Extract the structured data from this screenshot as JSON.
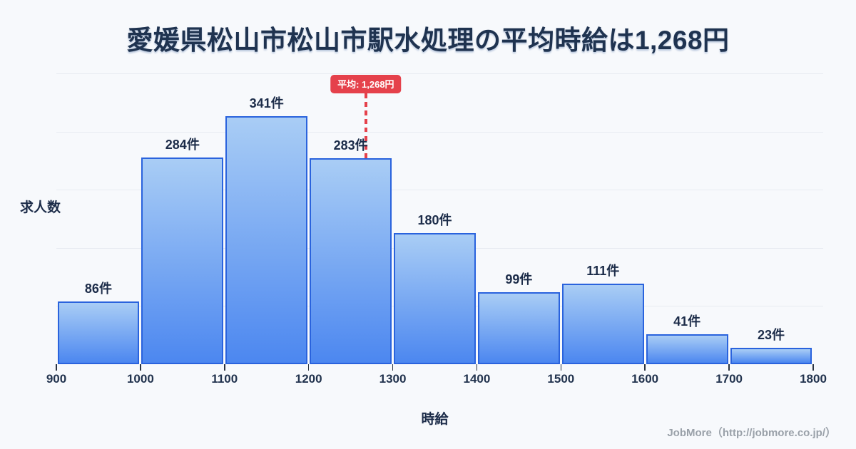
{
  "title": "愛媛県松山市松山市駅水処理の平均時給は1,268円",
  "average_badge_label": "平均: 1,268円",
  "footer_credit": "JobMore（http://jobmore.co.jp/）",
  "colors": {
    "background": "#f7f9fc",
    "title_text": "#1f3350",
    "bar_border": "#2a63dd",
    "bar_fill_top": "#a9cdf5",
    "bar_fill_bottom": "#4c87f0",
    "average_red": "#e5414b",
    "gridline": "#e7ebf1",
    "footer_text": "#9aa1a9"
  },
  "chart_data": {
    "type": "bar",
    "title": "愛媛県松山市松山市駅水処理の平均時給は1,268円",
    "xlabel": "時給",
    "ylabel": "求人数",
    "x_ticks": [
      "900",
      "1000",
      "1100",
      "1200",
      "1300",
      "1400",
      "1500",
      "1600",
      "1700",
      "1800"
    ],
    "bin_edges": [
      900,
      1000,
      1100,
      1200,
      1300,
      1400,
      1500,
      1600,
      1700,
      1800
    ],
    "values": [
      86,
      284,
      341,
      283,
      180,
      99,
      111,
      41,
      23
    ],
    "value_unit": "件",
    "average": 1268,
    "ylim": [
      0,
      400
    ],
    "grid_step": 80,
    "grid_on": true,
    "legend": "none"
  }
}
